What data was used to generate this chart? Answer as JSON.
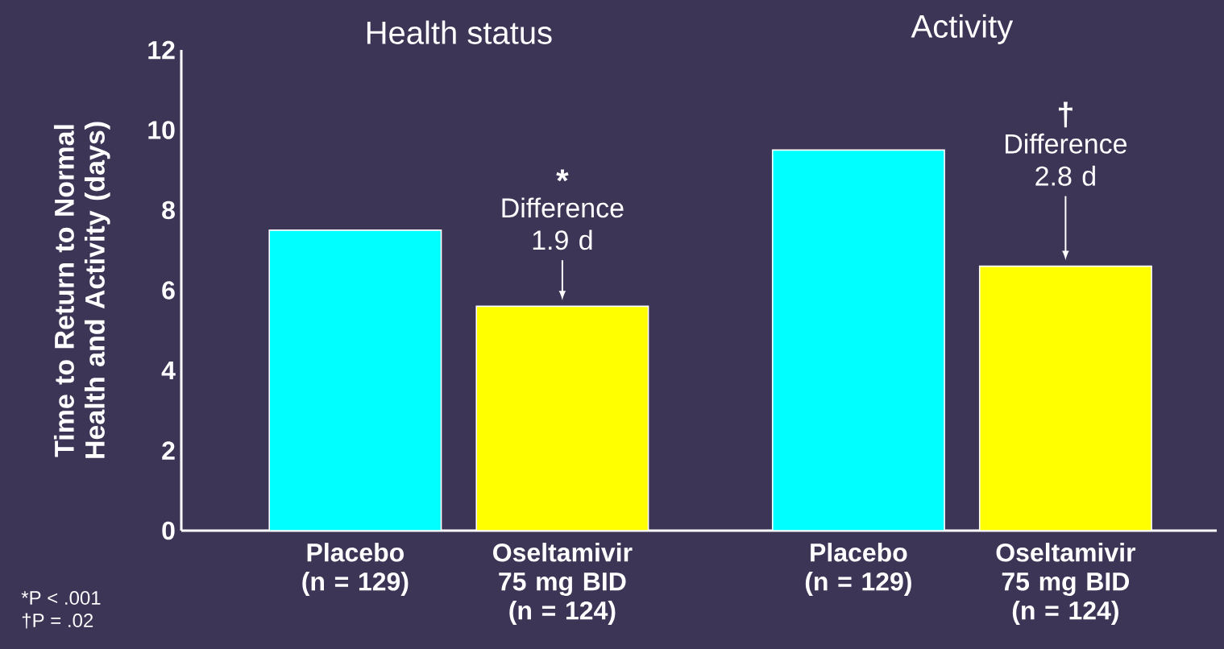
{
  "chart_data": {
    "type": "bar",
    "ylabel": "Time to Return to Normal Health and Activity (days)",
    "categories": [
      "Placebo (n = 129)",
      "Oseltamivir 75 mg BID (n = 124)",
      "Placebo (n = 129)",
      "Oseltamivir 75 mg BID (n = 124)"
    ],
    "values": [
      7.5,
      5.6,
      9.5,
      6.6
    ],
    "colors": [
      "#00ffff",
      "#ffff00",
      "#00ffff",
      "#ffff00"
    ],
    "ylim": [
      0,
      12
    ],
    "yticks": [
      0,
      2,
      4,
      6,
      8,
      10,
      12
    ],
    "annotations": [
      "Health status",
      "Activity",
      "*",
      "Difference 1.9 d",
      "†",
      "Difference 2.8 d",
      "*P < .001",
      "†P = .02"
    ]
  }
}
